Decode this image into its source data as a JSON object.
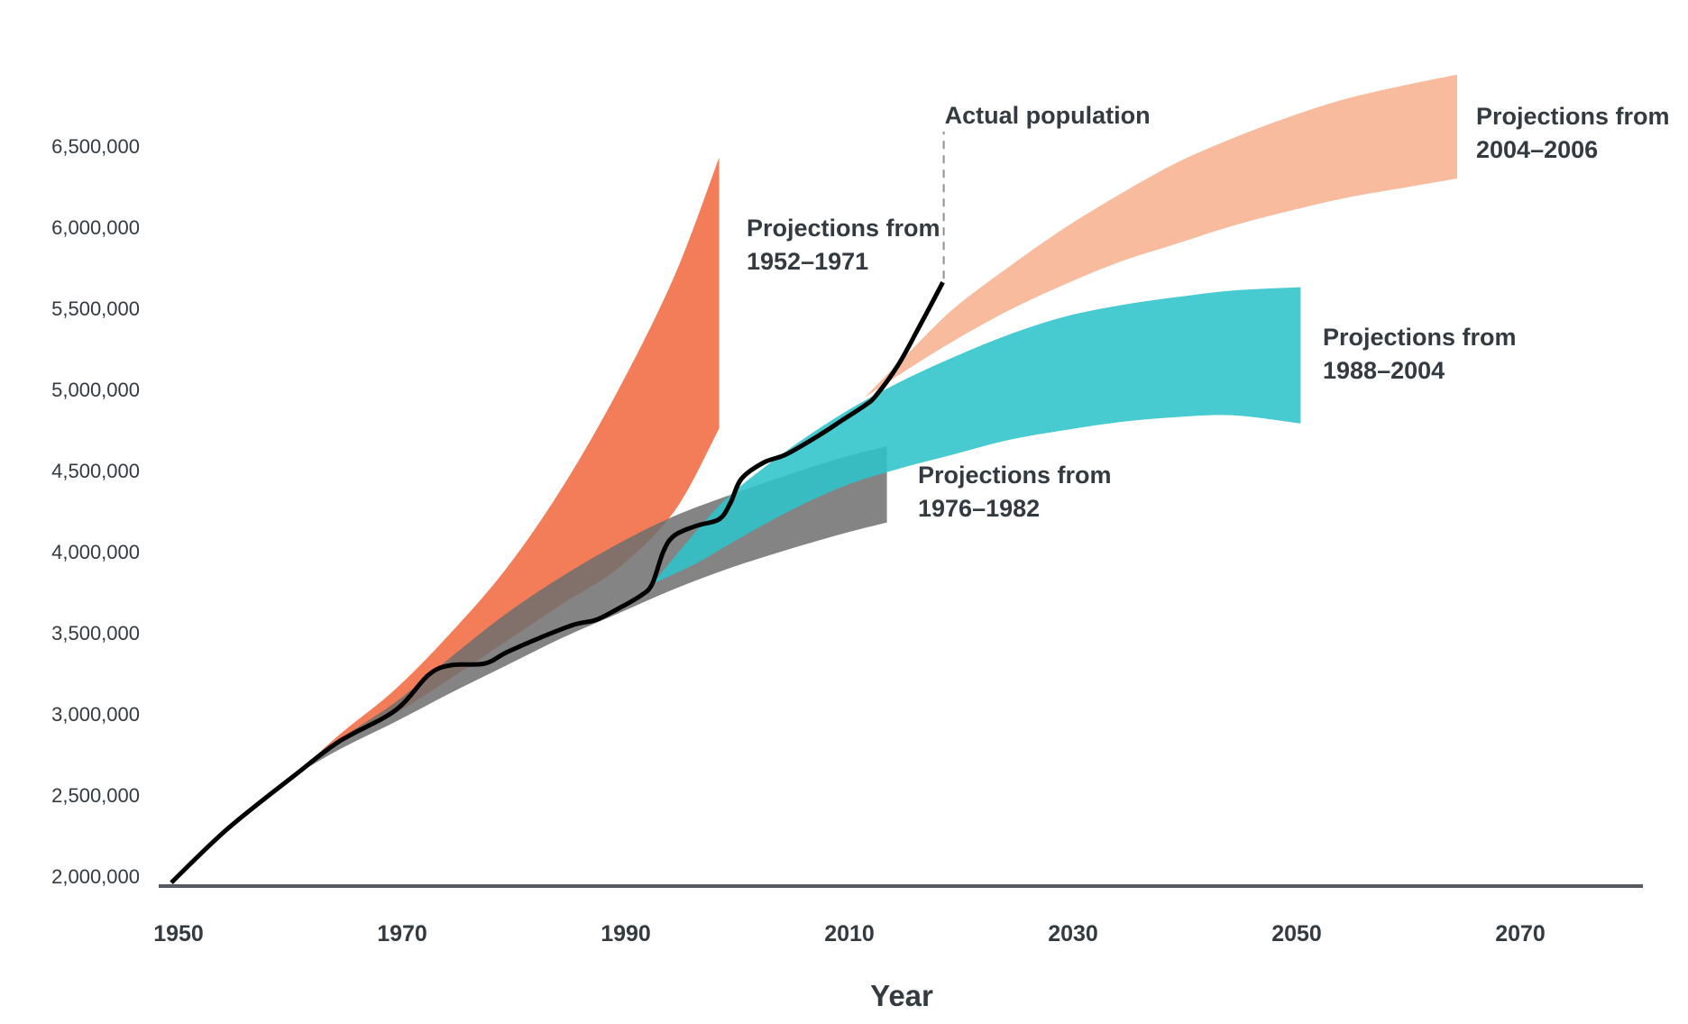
{
  "chart_data": {
    "type": "area",
    "title": "",
    "xlabel": "Year",
    "ylabel": "",
    "xlim": [
      1950,
      2082
    ],
    "ylim": [
      2000000,
      6900000
    ],
    "x_ticks": [
      1950,
      1970,
      1990,
      2010,
      2030,
      2050,
      2070
    ],
    "x_tick_labels": [
      "1950",
      "1970",
      "1990",
      "2010",
      "2030",
      "2050",
      "2070"
    ],
    "y_ticks": [
      2000000,
      2500000,
      3000000,
      3500000,
      4000000,
      4500000,
      5000000,
      5500000,
      6000000,
      6500000
    ],
    "y_tick_labels": [
      "2,000,000",
      "2,500,000",
      "3,000,000",
      "3,500,000",
      "4,000,000",
      "4,500,000",
      "5,000,000",
      "5,500,000",
      "6,000,000",
      "6,500,000"
    ],
    "grid": false,
    "legend": "none (direct labels)",
    "series": [
      {
        "name": "Projections from 1952–1971",
        "label_lines": [
          "Projections from",
          "1952–1971"
        ],
        "kind": "band",
        "color": "#f27d58",
        "opacity": 1,
        "x": [
          1961,
          1965,
          1970,
          1975,
          1980,
          1985,
          1990,
          1995,
          1999
        ],
        "upper": [
          2620000,
          2870000,
          3150000,
          3500000,
          3900000,
          4400000,
          5000000,
          5700000,
          6430000
        ],
        "lower": [
          2620000,
          2820000,
          3000000,
          3220000,
          3450000,
          3680000,
          3900000,
          4250000,
          4760000
        ]
      },
      {
        "name": "Projections from 1976–1982",
        "label_lines": [
          "Projections from",
          "1976–1982"
        ],
        "kind": "band",
        "color": "#6e6f6e",
        "opacity": 0.85,
        "x": [
          1961,
          1965,
          1970,
          1975,
          1980,
          1985,
          1990,
          1995,
          2000,
          2005,
          2010,
          2014
        ],
        "upper": [
          2620000,
          2840000,
          3070000,
          3350000,
          3620000,
          3850000,
          4050000,
          4220000,
          4350000,
          4470000,
          4580000,
          4650000
        ],
        "lower": [
          2620000,
          2780000,
          2950000,
          3130000,
          3300000,
          3470000,
          3620000,
          3770000,
          3900000,
          4010000,
          4110000,
          4180000
        ]
      },
      {
        "name": "Projections from 1988–2004",
        "label_lines": [
          "Projections from",
          "1988–2004"
        ],
        "kind": "band",
        "color": "#2ec4cb",
        "opacity": 0.88,
        "x": [
          1993,
          1997,
          2000,
          2005,
          2010,
          2015,
          2020,
          2025,
          2030,
          2035,
          2040,
          2045,
          2051
        ],
        "upper": [
          3800000,
          4130000,
          4350000,
          4620000,
          4850000,
          5040000,
          5200000,
          5340000,
          5450000,
          5520000,
          5570000,
          5610000,
          5630000
        ],
        "lower": [
          3800000,
          3930000,
          4050000,
          4240000,
          4400000,
          4510000,
          4600000,
          4690000,
          4750000,
          4800000,
          4830000,
          4840000,
          4790000
        ]
      },
      {
        "name": "Projections from 2004–2006",
        "label_lines": [
          "Projections from",
          "2004–2006"
        ],
        "kind": "band",
        "color": "#f8bb9d",
        "opacity": 1,
        "x": [
          2012,
          2016,
          2020,
          2025,
          2030,
          2035,
          2040,
          2045,
          2050,
          2055,
          2060,
          2065
        ],
        "upper": [
          4950000,
          5230000,
          5500000,
          5760000,
          6000000,
          6210000,
          6400000,
          6550000,
          6680000,
          6790000,
          6870000,
          6940000
        ],
        "lower": [
          4950000,
          5130000,
          5300000,
          5490000,
          5650000,
          5790000,
          5900000,
          6010000,
          6100000,
          6180000,
          6240000,
          6300000
        ]
      },
      {
        "name": "Actual population",
        "label_lines": [
          "Actual population"
        ],
        "kind": "line",
        "color": "#000000",
        "x": [
          1950,
          1955,
          1961,
          1965,
          1970,
          1973,
          1975,
          1978,
          1980,
          1983,
          1986,
          1988,
          1990,
          1992,
          1993,
          1994,
          1995,
          1997,
          1999,
          2000,
          2001,
          2003,
          2005,
          2008,
          2010,
          2012,
          2013,
          2015,
          2017,
          2019
        ],
        "y": [
          1960000,
          2290000,
          2620000,
          2830000,
          3020000,
          3240000,
          3300000,
          3310000,
          3380000,
          3470000,
          3550000,
          3580000,
          3650000,
          3730000,
          3800000,
          4000000,
          4100000,
          4160000,
          4200000,
          4300000,
          4450000,
          4550000,
          4600000,
          4720000,
          4810000,
          4900000,
          4960000,
          5150000,
          5400000,
          5660000
        ]
      }
    ]
  },
  "annotation": {
    "actual_population_label": "Actual population",
    "actual_population_year": 2019
  }
}
